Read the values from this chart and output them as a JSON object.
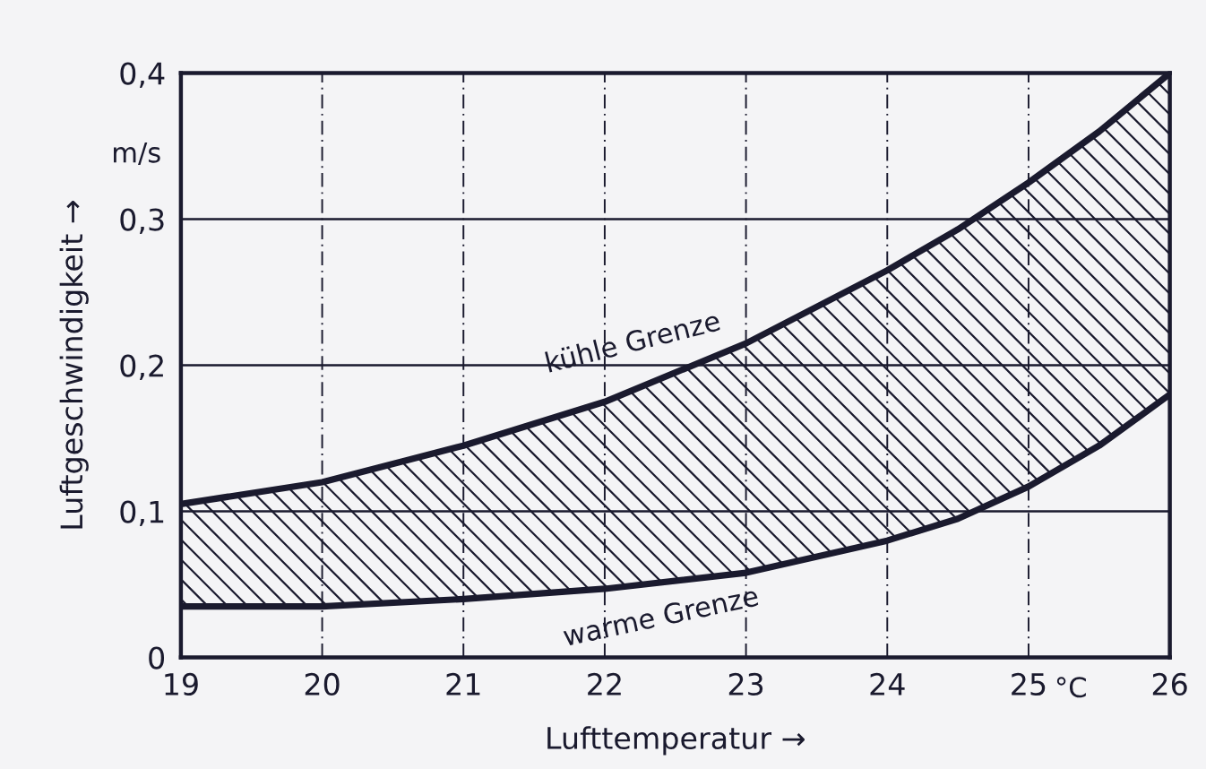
{
  "chart_data": {
    "type": "line",
    "xlabel": "Lufttemperatur →",
    "ylabel": "Luftgeschwindigkeit →",
    "x": [
      19,
      20,
      21,
      22,
      23,
      24,
      24.5,
      25,
      25.5,
      26
    ],
    "series": [
      {
        "name": "kühle Grenze",
        "color": "#1a1a2e",
        "values": [
          0.105,
          0.12,
          0.145,
          0.175,
          0.215,
          0.265,
          0.293,
          0.325,
          0.36,
          0.4
        ],
        "lower": [
          0.035,
          0.035,
          0.04,
          0.047,
          0.058,
          0.08,
          0.095,
          0.117,
          0.145,
          0.18
        ],
        "upper": [
          0.105,
          0.12,
          0.145,
          0.175,
          0.215,
          0.265,
          0.293,
          0.325,
          0.36,
          0.4
        ]
      },
      {
        "name": "warme Grenze",
        "color": "#1a1a2e",
        "values": [
          0.035,
          0.035,
          0.04,
          0.047,
          0.058,
          0.08,
          0.095,
          0.117,
          0.145,
          0.18
        ]
      }
    ],
    "xlim": [
      19,
      26
    ],
    "ylim": [
      0,
      0.4
    ],
    "xticks": [
      19,
      20,
      21,
      22,
      23,
      24,
      25,
      26
    ],
    "yticks": [
      0,
      {
        "value": 0.1,
        "label": "0,1"
      },
      {
        "value": 0.2,
        "label": "0,2"
      },
      {
        "value": 0.3,
        "label": "0,3"
      },
      {
        "value": 0.4,
        "label": "0,4"
      }
    ],
    "annotations": [
      "m/s",
      "°C"
    ],
    "grid": true,
    "marker": "none",
    "line_style": "solid",
    "legend": false
  }
}
